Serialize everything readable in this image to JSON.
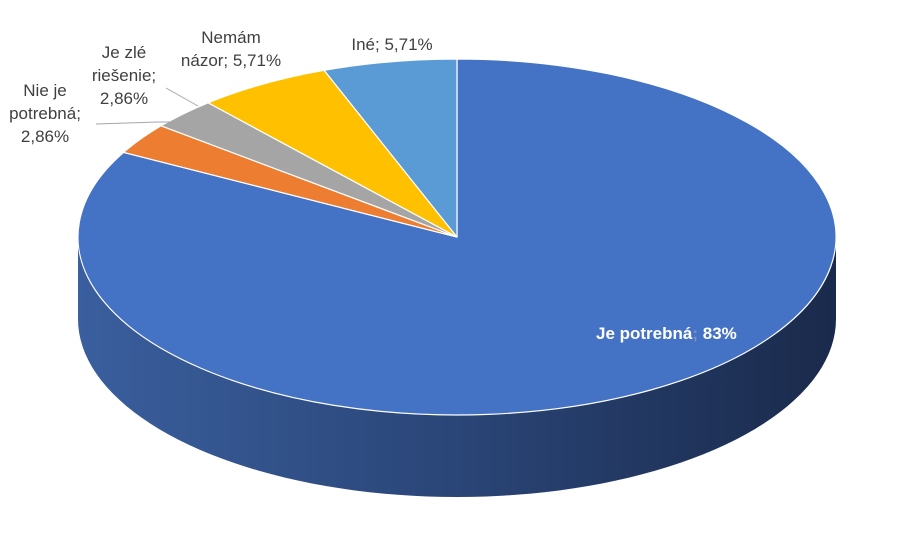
{
  "chart_data": {
    "type": "pie",
    "style": "3d",
    "title": "",
    "categories": [
      "Je potrebná",
      "Nie je potrebná",
      "Je zlé riešenie",
      "Nemám názor",
      "Iné"
    ],
    "values": [
      83,
      2.86,
      2.86,
      5.71,
      5.71
    ],
    "colors": [
      "#4472c4",
      "#ed7d31",
      "#a5a5a5",
      "#ffc000",
      "#5b9bd5"
    ],
    "labels": [
      {
        "name": "Je potrebná",
        "sep": ";",
        "value": " 83%"
      },
      {
        "lines": [
          "Nie je",
          "potrebná;",
          "2,86%"
        ]
      },
      {
        "lines": [
          "Je zlé",
          "riešenie;",
          "2,86%"
        ]
      },
      {
        "lines": [
          "Nemám",
          "názor; 5,71%"
        ]
      },
      {
        "lines": [
          "Iné; 5,71%"
        ]
      }
    ],
    "legend": "none"
  }
}
